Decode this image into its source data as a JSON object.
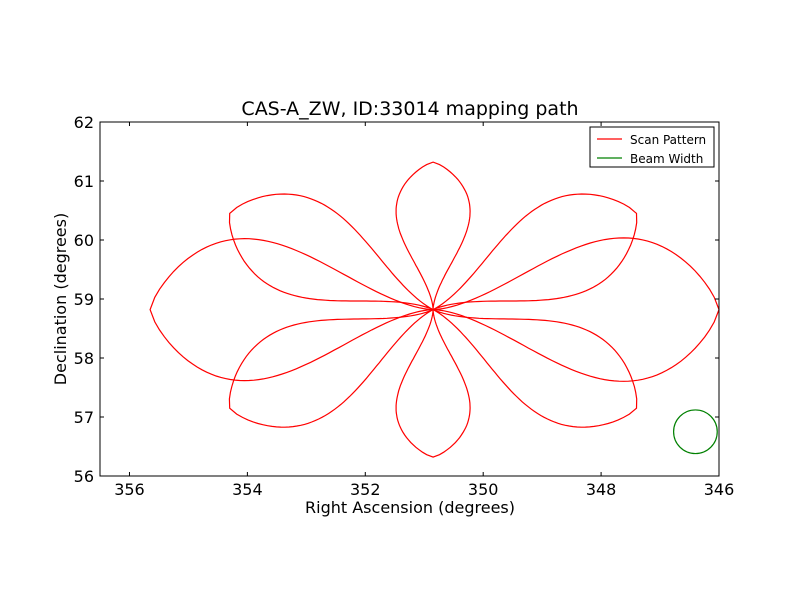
{
  "chart_data": {
    "type": "line",
    "title": "CAS-A_ZW, ID:33014 mapping path",
    "xlabel": "Right Ascension (degrees)",
    "ylabel": "Declination (degrees)",
    "xlim": [
      356.5,
      346.0
    ],
    "ylim": [
      56,
      62
    ],
    "x_ticks": [
      "356",
      "354",
      "352",
      "350",
      "348",
      "346"
    ],
    "y_ticks": [
      "56",
      "57",
      "58",
      "59",
      "60",
      "61",
      "62"
    ],
    "x_tick_values": [
      356,
      354,
      352,
      350,
      348,
      346
    ],
    "y_tick_values": [
      56,
      57,
      58,
      59,
      60,
      61,
      62
    ],
    "grid": false,
    "legend_position": "top-right",
    "series": [
      {
        "name": "Scan Pattern",
        "color": "#ff0000",
        "shape": "eight-petal rose",
        "center": [
          350.85,
          58.82
        ],
        "petals": [
          {
            "tip": [
              350.85,
              61.32
            ],
            "width": 0.7
          },
          {
            "tip": [
              347.4,
              60.45
            ],
            "width": 0.6
          },
          {
            "tip": [
              346.0,
              58.82
            ],
            "width": 0.7
          },
          {
            "tip": [
              347.4,
              57.15
            ],
            "width": 0.6
          },
          {
            "tip": [
              350.85,
              56.32
            ],
            "width": 0.7
          },
          {
            "tip": [
              354.3,
              57.15
            ],
            "width": 0.6
          },
          {
            "tip": [
              355.65,
              58.82
            ],
            "width": 0.7
          },
          {
            "tip": [
              354.3,
              60.45
            ],
            "width": 0.6
          }
        ]
      },
      {
        "name": "Beam Width",
        "color": "#008000",
        "shape": "circle",
        "center": [
          346.4,
          56.75
        ],
        "radius_deg": 0.37
      }
    ]
  }
}
